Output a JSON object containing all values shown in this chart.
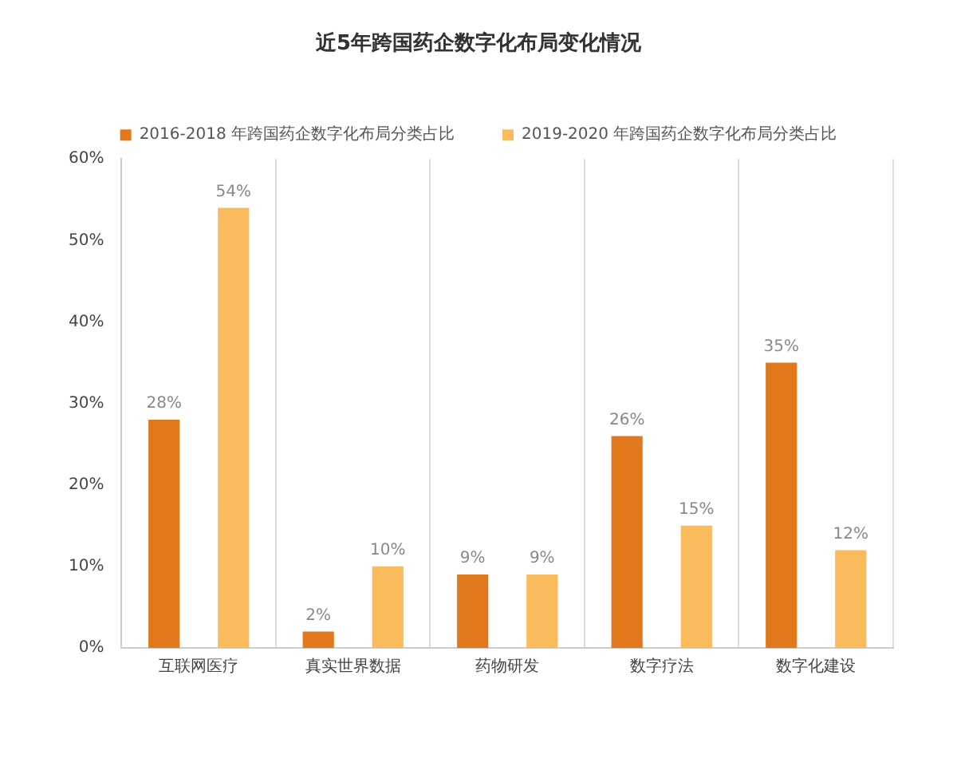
{
  "chart_data": {
    "type": "bar",
    "title": "近5年跨国药企数字化布局变化情况",
    "categories": [
      "互联网医疗",
      "真实世界数据",
      "药物研发",
      "数字疗法",
      "数字化建设"
    ],
    "series": [
      {
        "name": "2016-2018 年跨国药企数字化布局分类占比",
        "color": "#e2781c",
        "values": [
          28,
          2,
          9,
          26,
          35
        ],
        "value_labels": [
          "28%",
          "2%",
          "9%",
          "26%",
          "35%"
        ]
      },
      {
        "name": "2019-2020 年跨国药企数字化布局分类占比",
        "color": "#f9bb5c",
        "values": [
          54,
          10,
          9,
          15,
          12
        ],
        "value_labels": [
          "54%",
          "10%",
          "9%",
          "15%",
          "12%"
        ]
      }
    ],
    "ylim": [
      0,
      60
    ],
    "yticks": [
      {
        "value": 0,
        "label": "0%"
      },
      {
        "value": 10,
        "label": "10%"
      },
      {
        "value": 20,
        "label": "20%"
      },
      {
        "value": 30,
        "label": "30%"
      },
      {
        "value": 40,
        "label": "40%"
      },
      {
        "value": 50,
        "label": "50%"
      },
      {
        "value": 60,
        "label": "60%"
      }
    ],
    "grid": "x",
    "legend": "top"
  }
}
